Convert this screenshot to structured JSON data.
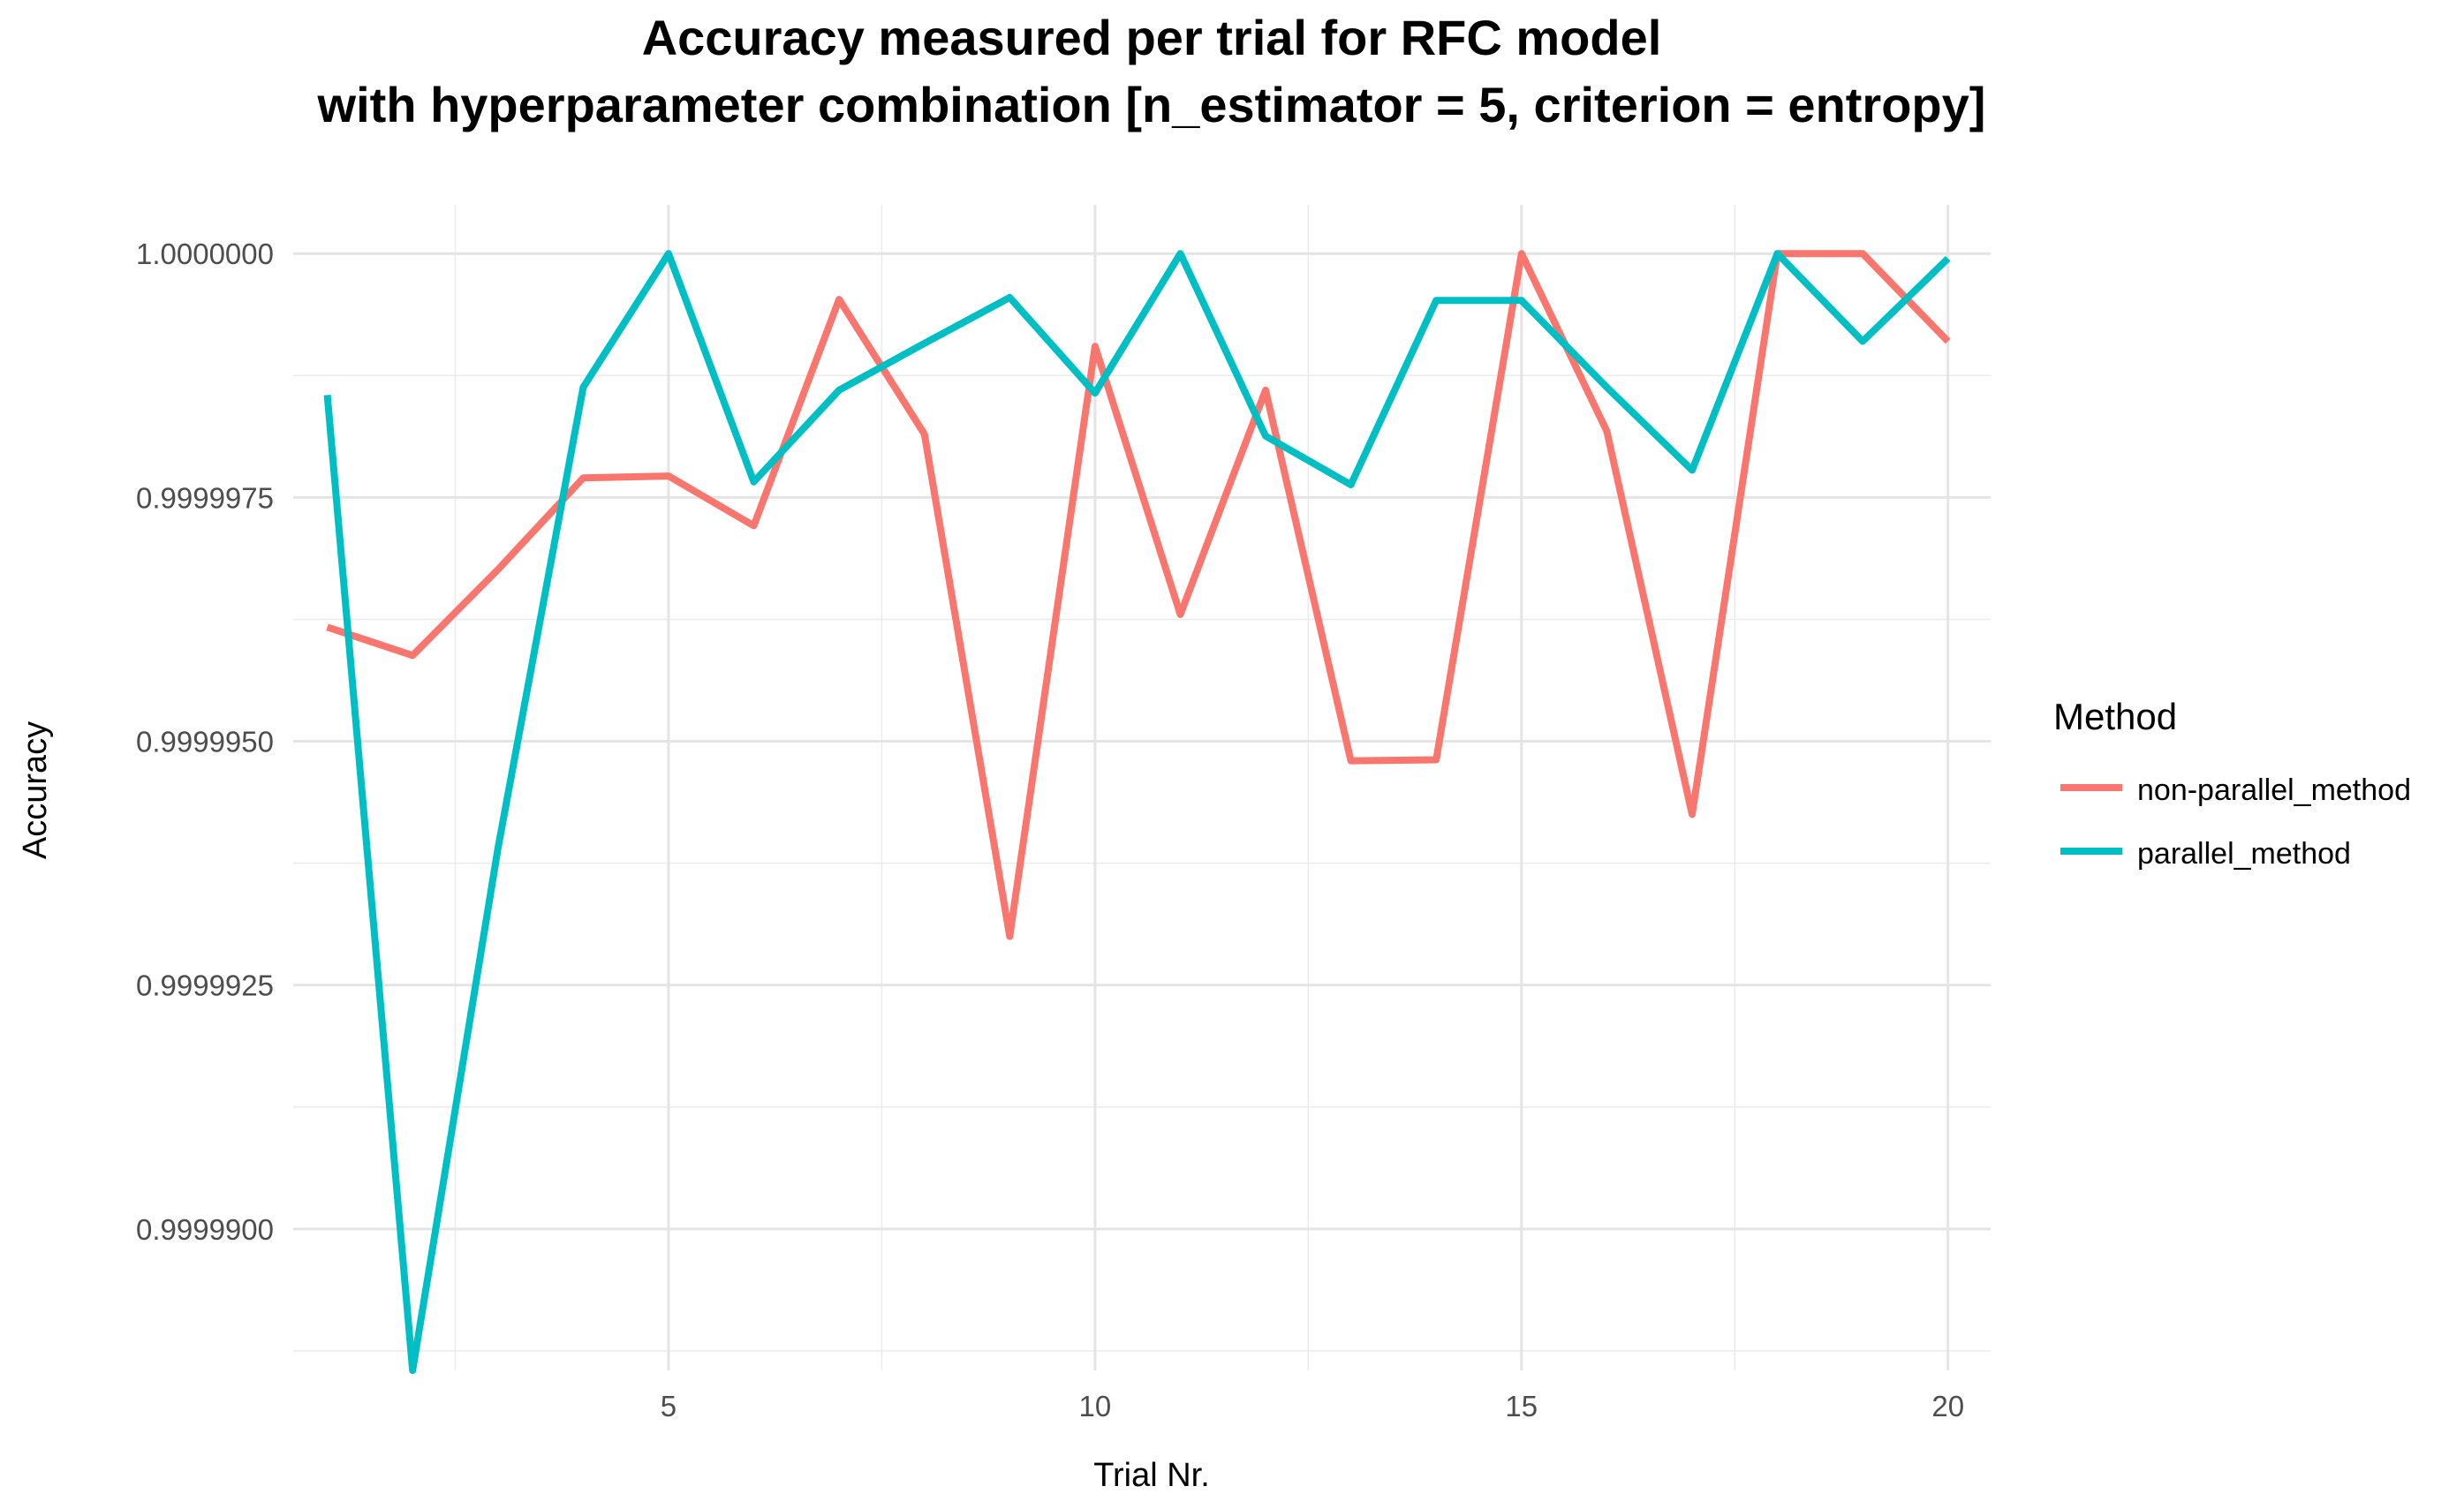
{
  "chart_data": {
    "type": "line",
    "title": "Accuracy measured per trial for RFC model",
    "subtitle": "with hyperparameter combination [n_estimator = 5, criterion = entropy]",
    "xlabel": "Trial Nr.",
    "ylabel": "Accuracy",
    "xlim": [
      0.6,
      20.5
    ],
    "ylim": [
      0.99998855,
      1.0000005
    ],
    "x_ticks": [
      5,
      10,
      15,
      20
    ],
    "x_tick_labels": [
      "5",
      "10",
      "15",
      "20"
    ],
    "x_minor_ticks": [
      2.5,
      7.5,
      12.5,
      17.5
    ],
    "y_ticks": [
      0.99999,
      0.9999925,
      0.999995,
      0.9999975,
      1.0
    ],
    "y_tick_labels": [
      "0.9999900",
      "0.9999925",
      "0.9999950",
      "0.9999975",
      "1.0000000"
    ],
    "y_minor_ticks": [
      0.99998875,
      0.99999125,
      0.99999375,
      0.99999625,
      0.99999875
    ],
    "grid": true,
    "legend": {
      "title": "Method",
      "position": "right"
    },
    "x": [
      1,
      2,
      3,
      4,
      5,
      6,
      7,
      8,
      9,
      10,
      11,
      12,
      13,
      14,
      15,
      16,
      17,
      18,
      19,
      20
    ],
    "series": [
      {
        "name": "non-parallel_method",
        "color": "#F8766D",
        "values": [
          0.99999617,
          0.99999588,
          0.99999676,
          0.9999977,
          0.99999772,
          0.99999721,
          0.99999953,
          0.99999815,
          0.999993,
          0.99999905,
          0.9999963,
          0.9999986,
          0.9999948,
          0.99999481,
          1.0,
          0.99999818,
          0.99999425,
          1.0,
          1.0,
          0.9999991
        ]
      },
      {
        "name": "parallel_method",
        "color": "#00BFC4",
        "values": [
          0.99999855,
          0.99998855,
          0.9999939,
          0.99999863,
          1.0,
          0.99999766,
          0.9999986,
          0.99999908,
          0.99999955,
          0.99999857,
          1.0,
          0.99999813,
          0.99999763,
          0.99999952,
          0.99999952,
          0.99999863,
          0.99999778,
          1.0,
          0.9999991,
          0.99999995
        ]
      }
    ]
  }
}
